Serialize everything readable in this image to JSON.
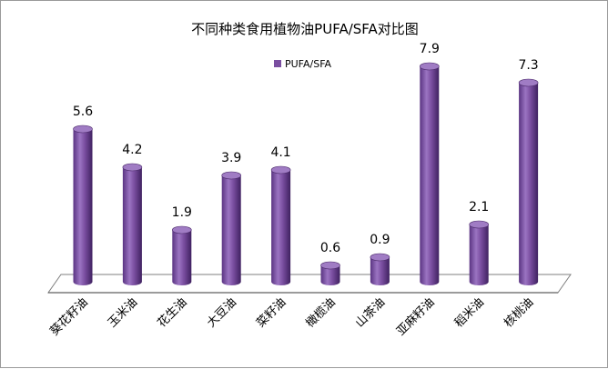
{
  "chart_data": {
    "type": "bar",
    "title": "不同种类食用植物油PUFA/SFA对比图",
    "categories": [
      "葵花籽油",
      "玉米油",
      "花生油",
      "大豆油",
      "菜籽油",
      "橄榄油",
      "山茶油",
      "亚麻籽油",
      "稻米油",
      "核桃油"
    ],
    "series": [
      {
        "name": "PUFA/SFA",
        "values": [
          5.6,
          4.2,
          1.9,
          3.9,
          4.1,
          0.6,
          0.9,
          7.9,
          2.1,
          7.3
        ],
        "labels": [
          "5.6",
          "4.2",
          "1.9",
          "3.9",
          "4.1",
          "0.6",
          "0.9",
          "7.9",
          "2.1",
          "7.3"
        ]
      }
    ],
    "ylim": [
      0,
      8
    ],
    "legend_position": "top-center",
    "grid": false,
    "bar_style": "3d-cylinder",
    "colors": {
      "bar": "#7a4ea0",
      "bar_dark": "#4b2a6a",
      "bar_light": "#a07cc4",
      "floor": "#ffffff",
      "floor_edge": "#7f7f7f"
    }
  }
}
